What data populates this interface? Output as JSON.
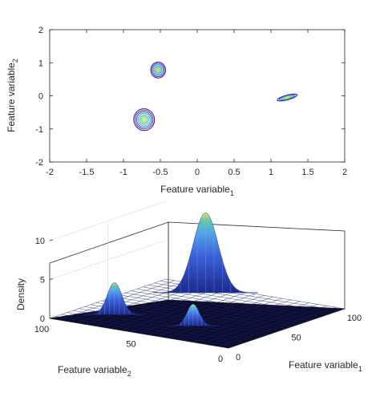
{
  "chart_data": [
    {
      "type": "contour",
      "xlabel": "Feature variable",
      "xlabel_sub": "1",
      "ylabel": "Feature variable",
      "ylabel_sub": "2",
      "xlim": [
        -2,
        2
      ],
      "ylim": [
        -2,
        2
      ],
      "xticks": [
        -2,
        -1.5,
        -1,
        -0.5,
        0,
        0.5,
        1,
        1.5,
        2
      ],
      "yticks": [
        -2,
        -1,
        0,
        1,
        2
      ],
      "xtick_labels": [
        "-2",
        "-1.5",
        "-1",
        "-0.5",
        "0",
        "0.5",
        "1",
        "1.5",
        "2"
      ],
      "ytick_labels": [
        "-2",
        "-1",
        "0",
        "1",
        "2"
      ],
      "grid": false,
      "clusters": [
        {
          "center": [
            -0.53,
            0.78
          ],
          "sx": 0.1,
          "sy": 0.24,
          "tilt_deg": -5,
          "levels": 6,
          "peak_color": "#4fd0e0"
        },
        {
          "center": [
            -0.72,
            -0.72
          ],
          "sx": 0.14,
          "sy": 0.33,
          "tilt_deg": -10,
          "levels": 7,
          "peak_color": "#a7e2ff"
        },
        {
          "center": [
            1.22,
            -0.05
          ],
          "sx": 0.14,
          "sy": 0.07,
          "tilt_deg": -15,
          "levels": 5,
          "peak_color": "#f8e71c"
        }
      ],
      "contour_colors": [
        "#3d0e6b",
        "#4a2da8",
        "#3b52cf",
        "#2f86e6",
        "#36b0d8",
        "#5ccca0",
        "#a4d65a",
        "#f2e24b"
      ]
    },
    {
      "type": "surface",
      "zlabel": "Density",
      "xlabel": "Feature variable",
      "xlabel_sub": "1",
      "ylabel": "Feature variable",
      "ylabel_sub": "2",
      "zlim": [
        0,
        10
      ],
      "zticks": [
        0,
        5,
        10
      ],
      "ztick_labels": [
        "0",
        "5",
        "10"
      ],
      "xticks": [
        0,
        50,
        100
      ],
      "xtick_labels": [
        "0",
        "50",
        "100"
      ],
      "yticks": [
        0,
        50,
        100
      ],
      "ytick_labels": [
        "0",
        "50",
        "100"
      ],
      "floor_color": "#0b0b2e",
      "peaks": [
        {
          "label_x": 25,
          "label_y": 80,
          "height": 4.1
        },
        {
          "label_x": 28,
          "label_y": 38,
          "height": 2.8
        },
        {
          "label_x": 88,
          "label_y": 70,
          "height": 10.3
        }
      ]
    }
  ]
}
